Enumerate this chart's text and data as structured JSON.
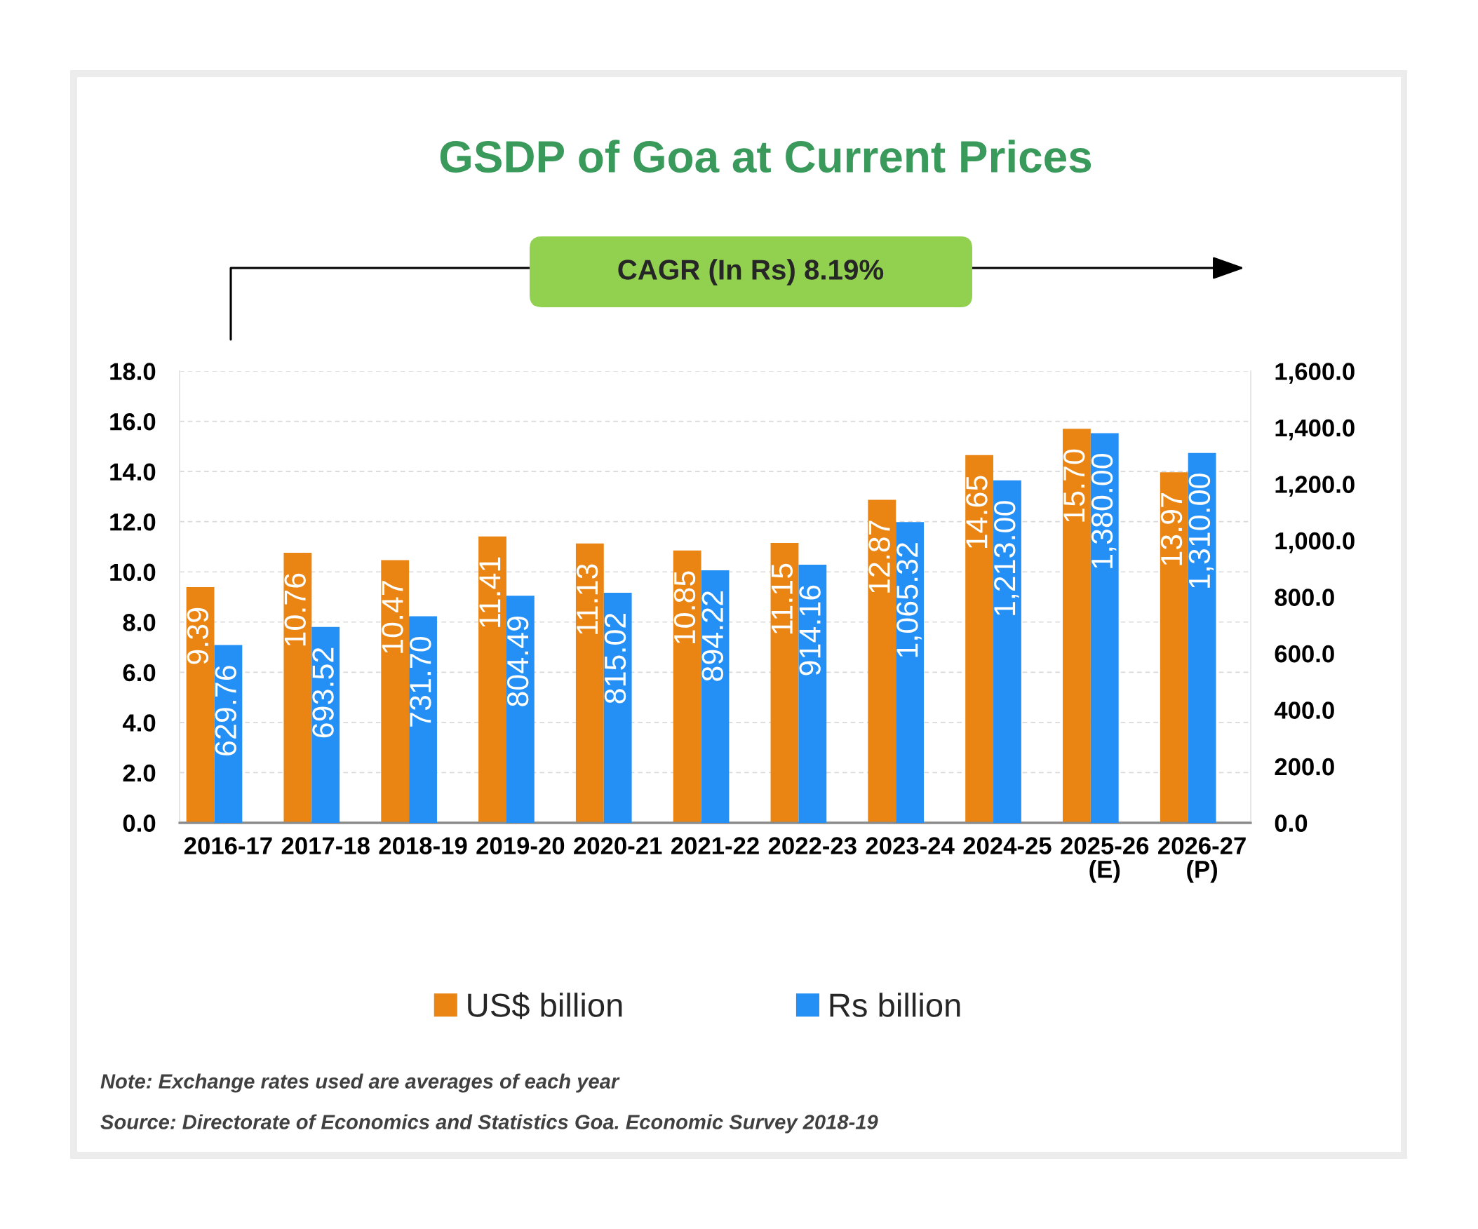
{
  "chart_data": {
    "type": "bar",
    "title": "GSDP of Goa at Current Prices",
    "categories": [
      "2016-17",
      "2017-18",
      "2018-19",
      "2019-20",
      "2020-21",
      "2021-22",
      "2022-23",
      "2023-24",
      "2024-25",
      "2025-26\n(E)",
      "2026-27\n(P)"
    ],
    "series": [
      {
        "name": "US$ billion",
        "color": "#ea8412",
        "values": [
          9.39,
          10.76,
          10.47,
          11.41,
          11.13,
          10.85,
          11.15,
          12.87,
          14.65,
          15.7,
          13.97
        ],
        "value_labels": [
          "9.39",
          "10.76",
          "10.47",
          "11.41",
          "11.13",
          "10.85",
          "11.15",
          "12.87",
          "14.65",
          "15.70",
          "13.97"
        ]
      },
      {
        "name": "Rs billion",
        "color": "#2490f5",
        "axis": "y2",
        "values": [
          629.76,
          693.52,
          731.7,
          804.49,
          815.02,
          894.22,
          914.16,
          1065.32,
          1213.0,
          1380.0,
          1310.0
        ],
        "value_labels": [
          "629.76",
          "693.52",
          "731.70",
          "804.49",
          "815.02",
          "894.22",
          "914.16",
          "1,065.32",
          "1,213.00",
          "1,380.00",
          "1,310.00"
        ]
      }
    ],
    "ylim": [
      0,
      18
    ],
    "yticks": [
      {
        "value": 0,
        "label": "0.0"
      },
      {
        "value": 2,
        "label": "2.0"
      },
      {
        "value": 4,
        "label": "4.0"
      },
      {
        "value": 6,
        "label": "6.0"
      },
      {
        "value": 8,
        "label": "8.0"
      },
      {
        "value": 10,
        "label": "10.0"
      },
      {
        "value": 12,
        "label": "12.0"
      },
      {
        "value": 14,
        "label": "14.0"
      },
      {
        "value": 16,
        "label": "16.0"
      },
      {
        "value": 18,
        "label": "18.0"
      }
    ],
    "y2lim": [
      0,
      1600
    ],
    "y2ticks": [
      {
        "value": 0,
        "label": "0.0"
      },
      {
        "value": 200,
        "label": "200.0"
      },
      {
        "value": 400,
        "label": "400.0"
      },
      {
        "value": 600,
        "label": "600.0"
      },
      {
        "value": 800,
        "label": "800.0"
      },
      {
        "value": 1000,
        "label": "1,000.0"
      },
      {
        "value": 1200,
        "label": "1,200.0"
      },
      {
        "value": 1400,
        "label": "1,400.0"
      },
      {
        "value": 1600,
        "label": "1,600.0"
      }
    ],
    "grid": "y",
    "legend": "bottom",
    "annotations": [
      "CAGR (In Rs) 8.19%",
      "Note: Exchange rates used are averages of each year",
      "Source: Directorate of Economics and Statistics Goa. Economic Survey 2018-19"
    ]
  }
}
